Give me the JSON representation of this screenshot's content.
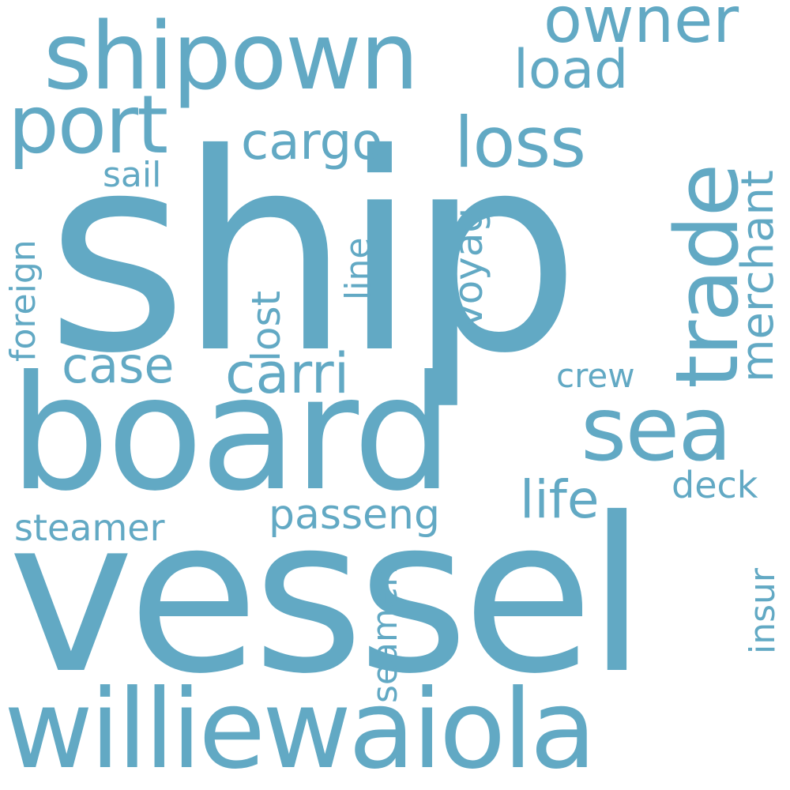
{
  "word_color": "#62a9c4",
  "background_color": "#ffffff",
  "words": {
    "ship": "ship",
    "vessel": "vessel",
    "board": "board",
    "williewaiola": "williewaiola",
    "shipown": "shipown",
    "port": "port",
    "trade": "trade",
    "owner": "owner",
    "load": "load",
    "loss": "loss",
    "cargo": "cargo",
    "sail": "sail",
    "merchant": "merchant",
    "foreign": "foreign",
    "line": "line",
    "voyag": "voyag",
    "lost": "lost",
    "case": "case",
    "carri": "carri",
    "crew": "crew",
    "sea": "sea",
    "deck": "deck",
    "life": "life",
    "passeng": "passeng",
    "steamer": "steamer",
    "seamen": "seamen",
    "insur": "insur"
  }
}
